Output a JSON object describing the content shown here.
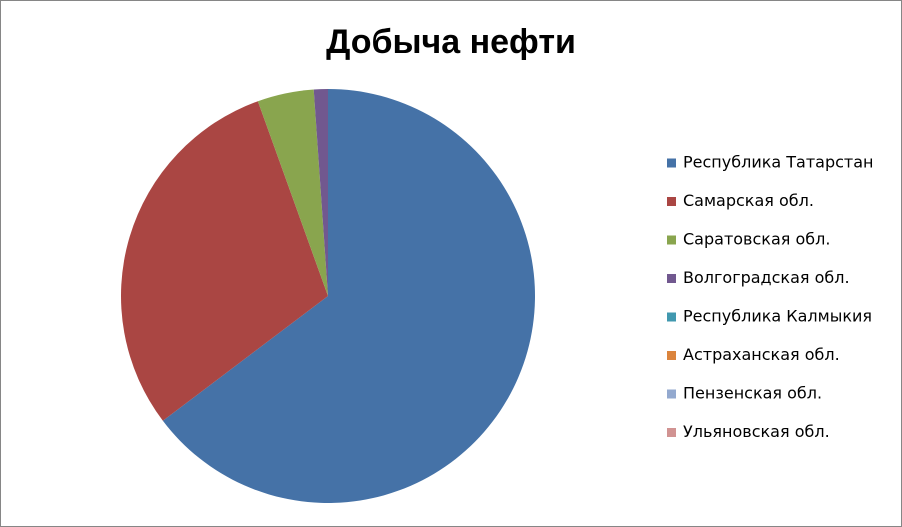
{
  "chart_data": {
    "type": "pie",
    "title": "Добыча нефти",
    "categories": [
      "Республика Татарстан",
      "Самарская обл.",
      "Саратовская обл.",
      "Волгоградская обл.",
      "Республика Калмыкия",
      "Астраханская обл.",
      "Пензенская обл.",
      "Ульяновская обл."
    ],
    "values": [
      64.7,
      29.8,
      4.4,
      1.1,
      0,
      0,
      0,
      0
    ],
    "colors": [
      "#4572a7",
      "#aa4643",
      "#89a54e",
      "#71588f",
      "#4198af",
      "#db843d",
      "#93a9cf",
      "#d19392"
    ],
    "legend": "right"
  }
}
